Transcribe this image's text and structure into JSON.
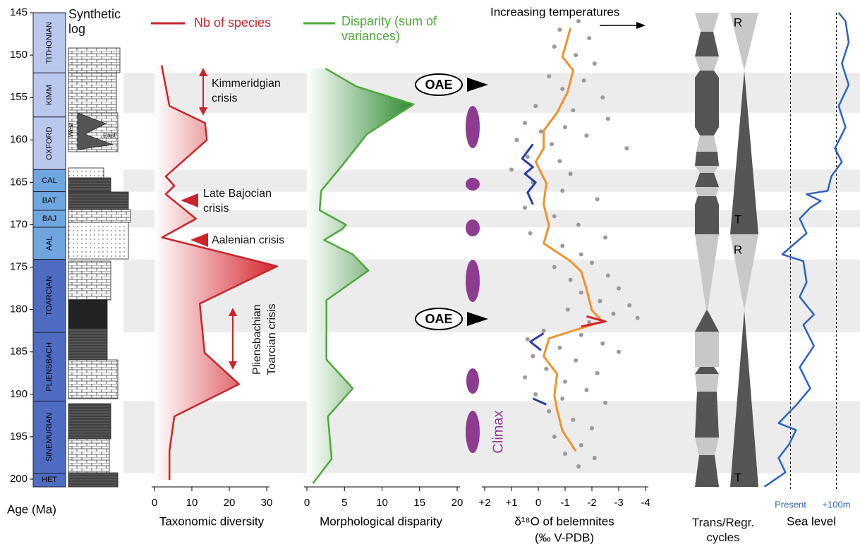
{
  "chart_data": [
    {
      "type": "stratigraphy",
      "ylabel": "Age (Ma)",
      "ylim": [
        145,
        200
      ],
      "yticks": [
        145,
        150,
        155,
        160,
        165,
        170,
        175,
        180,
        185,
        190,
        195,
        200
      ],
      "log_title": "Synthetic log",
      "log_labels": [
        "West",
        "East"
      ],
      "stages": [
        {
          "name": "TITHONIAN",
          "top": 145,
          "base": 152.1,
          "color": "#b9c8ec"
        },
        {
          "name": "KIMM",
          "top": 152.1,
          "base": 157.3,
          "color": "#b9c8ec"
        },
        {
          "name": "OXFORD",
          "top": 157.3,
          "base": 163.5,
          "color": "#b9c8ec"
        },
        {
          "name": "CAL",
          "top": 163.5,
          "base": 166.1,
          "color": "#6fa6e0"
        },
        {
          "name": "BAT",
          "top": 166.1,
          "base": 168.3,
          "color": "#6fa6e0"
        },
        {
          "name": "BAJ",
          "top": 168.3,
          "base": 170.3,
          "color": "#6fa6e0"
        },
        {
          "name": "AAL",
          "top": 170.3,
          "base": 174.1,
          "color": "#6fa6e0"
        },
        {
          "name": "TOARCIAN",
          "top": 174.1,
          "base": 182.7,
          "color": "#4e6dc2"
        },
        {
          "name": "PLIENSBACH",
          "top": 182.7,
          "base": 190.8,
          "color": "#4e6dc2"
        },
        {
          "name": "SINEMURIAN",
          "top": 190.8,
          "base": 199.3,
          "color": "#4e6dc2"
        },
        {
          "name": "HET",
          "top": 199.3,
          "base": 201.3,
          "color": "#4e6dc2"
        }
      ],
      "crisis_bands": [
        {
          "top": 152.1,
          "base": 156.8
        },
        {
          "top": 163.5,
          "base": 166.1
        },
        {
          "top": 168.3,
          "base": 170.3
        },
        {
          "top": 174.1,
          "base": 182.7
        },
        {
          "top": 190.8,
          "base": 199.3
        }
      ]
    },
    {
      "type": "line",
      "xlabel": "Taxonomic diversity",
      "xlim": [
        0,
        30
      ],
      "xticks": [
        0,
        10,
        20,
        30
      ],
      "annotations": [
        "Kimmeridgian crisis",
        "Late Bajocian crisis",
        "Aalenian crisis",
        "Pliensbachian Toarcian crisis"
      ],
      "series": [
        {
          "name": "Nb of species",
          "color": "#c9252b",
          "x": [
            1.9,
            4,
            13.5,
            14,
            3,
            5.3,
            3,
            11.1,
            2,
            32.8,
            12.1,
            13.4,
            22.6,
            5.3,
            4,
            4
          ],
          "y": [
            151.2,
            156,
            158,
            160,
            164.3,
            165.4,
            166.4,
            169.3,
            171.5,
            174.9,
            179.3,
            185.1,
            188.8,
            192.6,
            196.7,
            200.1
          ]
        }
      ]
    },
    {
      "type": "line",
      "xlabel": "Morphological disparity",
      "xlim": [
        0,
        20
      ],
      "xticks": [
        0,
        5,
        10,
        15,
        20
      ],
      "series": [
        {
          "name": "Disparity (sum of variances)",
          "color": "#4fa83a",
          "x": [
            2.5,
            6.6,
            14.2,
            8,
            4.7,
            1.9,
            1.7,
            5.2,
            4.7,
            2.3,
            6.1,
            8.2,
            2.6,
            2.6,
            6.1,
            2.8,
            3.3,
            0.8
          ],
          "y": [
            151.6,
            153.7,
            155.8,
            159.3,
            163,
            166,
            168.3,
            170,
            170.5,
            171.8,
            173.5,
            175.4,
            178.9,
            185.9,
            189.3,
            192.6,
            197.6,
            200.5
          ]
        }
      ]
    },
    {
      "type": "scatter",
      "xlabel": "δ¹⁸O of belemnites",
      "xunit": "(‰ V-PDB)",
      "xlim": [
        2,
        -4
      ],
      "xticks": [
        {
          "value": 2,
          "label": "+2"
        },
        {
          "value": 1,
          "label": "+1"
        },
        0,
        -1,
        -2,
        -3,
        -4
      ],
      "annotation": "Increasing temperatures",
      "events": [
        "OAE",
        "OAE"
      ],
      "phase_label": "Climax",
      "points": {
        "color": "#9a9a9a",
        "x": [
          -1.5,
          -0.8,
          -1.9,
          -0.6,
          -1.4,
          -2.1,
          -0.4,
          -1.7,
          -0.9,
          -2.4,
          0.1,
          -1.3,
          -2.6,
          0.5,
          -1.0,
          -0.1,
          -1.8,
          0.8,
          -0.5,
          -3.3,
          0.4,
          -0.8,
          1.0,
          -1.2,
          0.2,
          -0.9,
          -2.2,
          0.5,
          -0.6,
          -1.5,
          0.3,
          -2.5,
          -0.9,
          -1.6,
          -2.0,
          -0.6,
          -2.6,
          -1.2,
          -3.0,
          -1.6,
          -2.3,
          -3.4,
          -1.1,
          -2.8,
          -3.7,
          -1.9,
          -0.2,
          -1.6,
          0.4,
          -2.4,
          -0.8,
          -3.0,
          0.2,
          -1.4,
          -0.3,
          -2.2,
          0.5,
          -1.0,
          -1.8,
          0.1,
          -0.9,
          -2.5,
          -0.4,
          -1.3,
          -2.0,
          -0.6,
          -1.6,
          -1.0,
          -2.1,
          -1.5
        ],
        "y": [
          146,
          147,
          148,
          149,
          150,
          151,
          152.5,
          153,
          154,
          155,
          156,
          156.5,
          157.5,
          158,
          158.5,
          159,
          159.5,
          160,
          160.5,
          161,
          162,
          162.5,
          163.5,
          164,
          165,
          166,
          167,
          168,
          169,
          170,
          171,
          171.5,
          172.5,
          173.5,
          174.5,
          175,
          176,
          176.5,
          177.5,
          178,
          179,
          179.5,
          180,
          180.5,
          181,
          181.5,
          182.5,
          183,
          183.5,
          184,
          184.5,
          185,
          185.5,
          186,
          187,
          187.5,
          188,
          188.5,
          189.5,
          190,
          190.5,
          191,
          192,
          193,
          194,
          195,
          196,
          197,
          197.5,
          198.5
        ]
      },
      "series": [
        {
          "color": "#f0922b",
          "x": [
            -1.2,
            -0.9,
            -1.3,
            -1.1,
            -0.7,
            -0.2,
            -0.2,
            0.1,
            -0.3,
            -0.2,
            -0.4,
            -0.2,
            -1.2,
            -1.6,
            -1.8,
            -2,
            -2.4,
            -1.6,
            -0.4,
            -0.2,
            -0.7,
            -0.6,
            -0.7,
            -0.9,
            -1.4
          ],
          "y": [
            146.8,
            150.2,
            151.8,
            154.3,
            156.8,
            158.9,
            161,
            162.6,
            165.1,
            167.6,
            170.1,
            172.2,
            174.3,
            175.5,
            177.6,
            180.1,
            181.4,
            182.2,
            183.4,
            185.5,
            187.6,
            190.1,
            191.8,
            194.3,
            196.7
          ]
        },
        {
          "color": "#2b3fa6",
          "x": [
            0.2,
            0.6,
            0.2,
            0.5,
            0.1,
            0.4,
            0.2,
            null,
            -0.2,
            0.3,
            -0.1,
            null,
            0.2,
            -0.3
          ],
          "y": [
            160.5,
            162.2,
            163.2,
            164,
            165,
            166.2,
            167.6,
            null,
            182.8,
            183.8,
            184.8,
            null,
            190.5,
            191.2
          ]
        },
        {
          "color": "#d8232a",
          "x": [
            -1.8,
            -2.5,
            -1.6
          ],
          "y": [
            180.8,
            181.4,
            182.0
          ]
        }
      ]
    },
    {
      "type": "cycles",
      "xlabel": "Trans/Regr. cycles",
      "labels": [
        "R",
        "T",
        "R",
        "T"
      ]
    },
    {
      "type": "line",
      "xlabel": "Sea level",
      "xlim": [
        -70,
        130
      ],
      "xticks": [
        {
          "value": 0,
          "label": "Present"
        },
        {
          "value": 100,
          "label": "+100m"
        }
      ],
      "series": [
        {
          "color": "#2d62c0",
          "x": [
            105,
            120,
            127,
            112,
            127,
            105,
            120,
            97,
            112,
            89,
            81,
            35,
            66,
            43,
            20,
            35,
            -18,
            28,
            35,
            20,
            51,
            28,
            51,
            20,
            43,
            12,
            -26,
            12,
            -3,
            -26,
            -11,
            -57
          ],
          "y": [
            145,
            146,
            148.5,
            151,
            153.5,
            156,
            158.5,
            161,
            162.6,
            164.3,
            166,
            166.4,
            167.2,
            168,
            169.3,
            171,
            173.5,
            174.3,
            176.8,
            178.5,
            180.6,
            181.8,
            184.3,
            186.8,
            189.3,
            191.3,
            193.4,
            194.2,
            195.9,
            197.5,
            199.2,
            200.9
          ]
        }
      ]
    }
  ]
}
